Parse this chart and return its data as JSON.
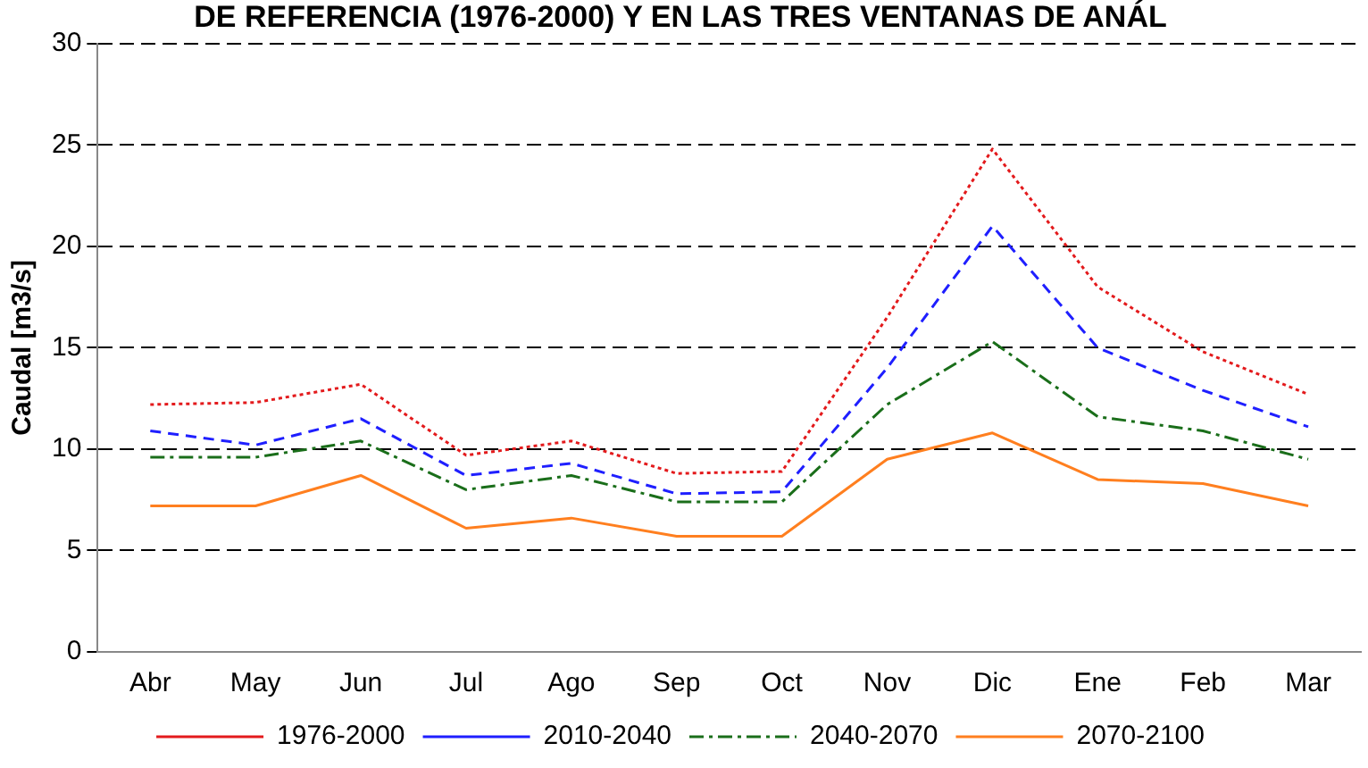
{
  "chart_data": {
    "type": "line",
    "title": "DE REFERENCIA (1976-2000) Y EN LAS TRES VENTANAS DE ANÁL",
    "ylabel": "Caudal [m3/s]",
    "categories": [
      "Abr",
      "May",
      "Jun",
      "Jul",
      "Ago",
      "Sep",
      "Oct",
      "Nov",
      "Dic",
      "Ene",
      "Feb",
      "Mar"
    ],
    "series": [
      {
        "name": "1976-2000",
        "color": "#e31a1c",
        "line_style": "dotted",
        "values": [
          12.2,
          12.3,
          13.2,
          9.7,
          10.4,
          8.8,
          8.9,
          16.5,
          24.8,
          18.0,
          14.8,
          12.7
        ]
      },
      {
        "name": "2010-2040",
        "color": "#1f1fff",
        "line_style": "dashed",
        "values": [
          10.9,
          10.2,
          11.5,
          8.7,
          9.3,
          7.8,
          7.9,
          14.0,
          21.0,
          15.0,
          12.9,
          11.1
        ]
      },
      {
        "name": "2040-2070",
        "color": "#1a6e1a",
        "line_style": "dashdot",
        "values": [
          9.6,
          9.6,
          10.4,
          8.0,
          8.7,
          7.4,
          7.4,
          12.2,
          15.3,
          11.6,
          10.9,
          9.5
        ]
      },
      {
        "name": "2070-2100",
        "color": "#ff7f1f",
        "line_style": "solid",
        "values": [
          7.2,
          7.2,
          8.7,
          6.1,
          6.6,
          5.7,
          5.7,
          9.5,
          10.8,
          8.5,
          8.3,
          7.2
        ]
      }
    ],
    "ylim": [
      0,
      30
    ],
    "yticks": [
      0,
      5,
      10,
      15,
      20,
      25,
      30
    ],
    "grid": "y",
    "legend": "bottom",
    "marker": "none"
  }
}
